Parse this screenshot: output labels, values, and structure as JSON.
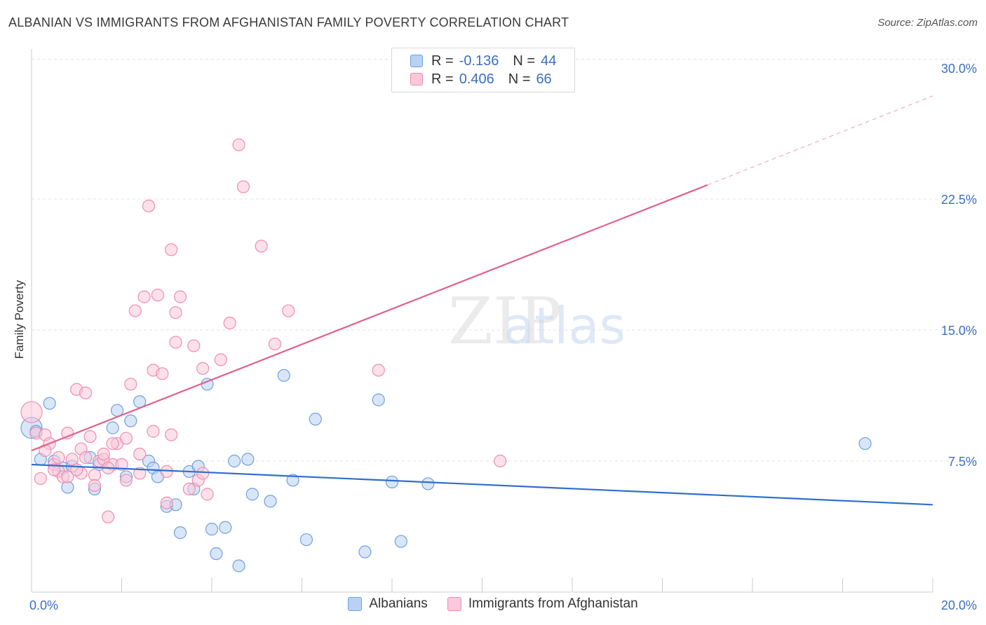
{
  "chart_data": {
    "type": "scatter",
    "title": "ALBANIAN VS IMMIGRANTS FROM AFGHANISTAN FAMILY POVERTY CORRELATION CHART",
    "source": "Source: ZipAtlas.com",
    "ylabel": "Family Poverty",
    "xlabel": "",
    "xlim": [
      0,
      20
    ],
    "ylim": [
      0,
      30.5
    ],
    "x_tick_labels": [
      "0.0%",
      "20.0%"
    ],
    "y_ticks": [
      7.5,
      15.0,
      22.5,
      30.0
    ],
    "y_tick_labels": [
      "7.5%",
      "15.0%",
      "22.5%",
      "30.0%"
    ],
    "grid": true,
    "watermark": "ZIPatlas",
    "legend": {
      "rows": [
        {
          "r_label": "R =",
          "r_value": "-0.136",
          "n_label": "N =",
          "n_value": "44"
        },
        {
          "r_label": "R =",
          "r_value": "0.406",
          "n_label": "N =",
          "n_value": "66"
        }
      ]
    },
    "series": [
      {
        "name": "Albanians",
        "color": "#6fa0e0",
        "fill": "#b9d2f3",
        "line_color": "#2f6fcc",
        "trend": {
          "x0": 0,
          "y0": 7.3,
          "x1": 20,
          "y1": 5.0
        },
        "points": [
          [
            0.0,
            9.4
          ],
          [
            0.4,
            10.8
          ],
          [
            0.2,
            7.6
          ],
          [
            0.5,
            7.5
          ],
          [
            0.7,
            7.1
          ],
          [
            0.9,
            7.2
          ],
          [
            0.8,
            6.0
          ],
          [
            1.3,
            7.7
          ],
          [
            1.5,
            7.3
          ],
          [
            1.4,
            5.9
          ],
          [
            1.8,
            9.4
          ],
          [
            1.9,
            10.4
          ],
          [
            2.2,
            9.8
          ],
          [
            2.1,
            6.6
          ],
          [
            2.4,
            10.9
          ],
          [
            2.6,
            7.5
          ],
          [
            2.7,
            7.1
          ],
          [
            2.8,
            6.6
          ],
          [
            3.0,
            4.9
          ],
          [
            3.2,
            5.0
          ],
          [
            3.3,
            3.4
          ],
          [
            3.5,
            6.9
          ],
          [
            3.6,
            5.9
          ],
          [
            3.7,
            7.2
          ],
          [
            3.9,
            11.9
          ],
          [
            4.0,
            3.6
          ],
          [
            4.1,
            2.2
          ],
          [
            4.3,
            3.7
          ],
          [
            4.5,
            7.5
          ],
          [
            4.6,
            1.5
          ],
          [
            4.8,
            7.6
          ],
          [
            4.9,
            5.6
          ],
          [
            5.3,
            5.2
          ],
          [
            5.6,
            12.4
          ],
          [
            5.8,
            6.4
          ],
          [
            6.1,
            3.0
          ],
          [
            6.3,
            9.9
          ],
          [
            7.4,
            2.3
          ],
          [
            7.7,
            11.0
          ],
          [
            8.0,
            6.3
          ],
          [
            8.2,
            2.9
          ],
          [
            8.8,
            6.2
          ],
          [
            18.5,
            8.5
          ],
          [
            0.1,
            9.2
          ]
        ]
      },
      {
        "name": "Immigrants from Afghanistan",
        "color": "#f08cb0",
        "fill": "#f9c9d9",
        "line_color": "#e0608e",
        "trend": {
          "x0": 0,
          "y0": 8.1,
          "x1": 15.0,
          "y1": 23.3
        },
        "trend_dashed": {
          "x0": 15.0,
          "y0": 23.3,
          "x1": 20,
          "y1": 28.4
        },
        "points": [
          [
            0.0,
            10.3
          ],
          [
            0.1,
            9.1
          ],
          [
            0.2,
            6.5
          ],
          [
            0.3,
            9.0
          ],
          [
            0.4,
            8.5
          ],
          [
            0.5,
            7.3
          ],
          [
            0.6,
            6.9
          ],
          [
            0.6,
            7.7
          ],
          [
            0.7,
            6.6
          ],
          [
            0.8,
            9.1
          ],
          [
            0.9,
            7.6
          ],
          [
            1.0,
            11.6
          ],
          [
            1.1,
            8.2
          ],
          [
            1.1,
            6.8
          ],
          [
            1.2,
            11.4
          ],
          [
            1.3,
            8.9
          ],
          [
            1.4,
            6.7
          ],
          [
            1.5,
            7.5
          ],
          [
            1.6,
            7.6
          ],
          [
            1.7,
            4.3
          ],
          [
            1.8,
            7.3
          ],
          [
            1.9,
            8.5
          ],
          [
            2.0,
            7.3
          ],
          [
            2.1,
            6.4
          ],
          [
            2.1,
            8.8
          ],
          [
            2.2,
            11.9
          ],
          [
            2.3,
            16.1
          ],
          [
            2.4,
            6.8
          ],
          [
            2.5,
            16.9
          ],
          [
            2.6,
            22.1
          ],
          [
            2.7,
            9.2
          ],
          [
            2.7,
            12.7
          ],
          [
            2.8,
            17.0
          ],
          [
            2.9,
            12.5
          ],
          [
            3.0,
            5.1
          ],
          [
            3.1,
            19.6
          ],
          [
            3.1,
            9.0
          ],
          [
            3.2,
            14.3
          ],
          [
            3.2,
            16.0
          ],
          [
            3.3,
            16.9
          ],
          [
            3.5,
            5.9
          ],
          [
            3.6,
            14.1
          ],
          [
            3.7,
            6.4
          ],
          [
            3.8,
            12.8
          ],
          [
            3.9,
            5.6
          ],
          [
            4.2,
            13.3
          ],
          [
            4.4,
            15.4
          ],
          [
            4.6,
            25.6
          ],
          [
            4.7,
            23.2
          ],
          [
            5.1,
            19.8
          ],
          [
            5.4,
            14.2
          ],
          [
            5.7,
            16.1
          ],
          [
            7.7,
            12.7
          ],
          [
            10.4,
            7.5
          ],
          [
            0.3,
            8.1
          ],
          [
            0.5,
            7.0
          ],
          [
            0.8,
            6.6
          ],
          [
            1.0,
            7.0
          ],
          [
            1.2,
            7.7
          ],
          [
            1.4,
            6.1
          ],
          [
            1.6,
            7.9
          ],
          [
            1.7,
            7.1
          ],
          [
            2.4,
            7.9
          ],
          [
            3.0,
            6.9
          ],
          [
            3.8,
            6.8
          ],
          [
            1.8,
            8.5
          ]
        ]
      }
    ],
    "bottom_legend": [
      "Albanians",
      "Immigrants from Afghanistan"
    ]
  }
}
